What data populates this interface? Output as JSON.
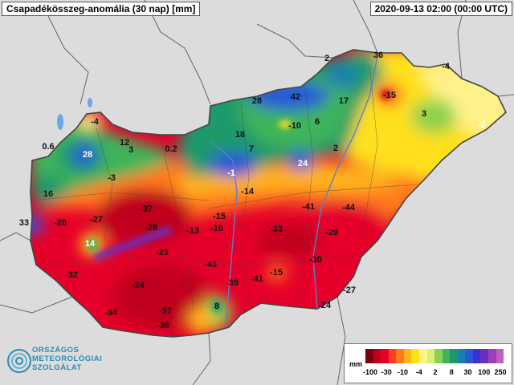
{
  "header": {
    "title": "Csapadékösszeg-anomália (30 nap) [mm]",
    "timestamp": "2020-09-13 02:00 (00:00 UTC)"
  },
  "logo": {
    "lines": [
      "ORSZÁGOS",
      "METEOROLÓGIAI",
      "SZOLGÁLAT"
    ]
  },
  "legend": {
    "unit": "mm",
    "colors": [
      "#7a0010",
      "#c0001a",
      "#e5002a",
      "#ff3d1a",
      "#ff7a1a",
      "#ffb31a",
      "#ffe01a",
      "#fff28a",
      "#d8f07a",
      "#8fd14f",
      "#3fb45a",
      "#1a9a6a",
      "#1a7fb0",
      "#2a56d8",
      "#3a2fd0",
      "#6a2fc0",
      "#9a3fb8",
      "#c05fc0"
    ],
    "labels": [
      "-100",
      "-30",
      "-10",
      "-4",
      "2",
      "8",
      "30",
      "100",
      "250"
    ]
  },
  "values": [
    {
      "v": "36",
      "tone": "dark"
    },
    {
      "v": "-4",
      "tone": "dark"
    },
    {
      "v": "2",
      "tone": "dark"
    },
    {
      "v": "-15",
      "tone": "dark"
    },
    {
      "v": "28",
      "tone": "dark"
    },
    {
      "v": "42",
      "tone": "dark"
    },
    {
      "v": "17",
      "tone": "dark"
    },
    {
      "v": "3",
      "tone": "dark"
    },
    {
      "v": "-2",
      "tone": "light"
    },
    {
      "v": "-4",
      "tone": "dark"
    },
    {
      "v": "6",
      "tone": "dark"
    },
    {
      "v": "-10",
      "tone": "dark"
    },
    {
      "v": "18",
      "tone": "dark"
    },
    {
      "v": "12",
      "tone": "dark"
    },
    {
      "v": "3",
      "tone": "dark"
    },
    {
      "v": "0.6",
      "tone": "dark"
    },
    {
      "v": "28",
      "tone": "light"
    },
    {
      "v": "0.2",
      "tone": "dark"
    },
    {
      "v": "7",
      "tone": "dark"
    },
    {
      "v": "2",
      "tone": "dark"
    },
    {
      "v": "24",
      "tone": "light"
    },
    {
      "v": "-1",
      "tone": "light"
    },
    {
      "v": "-3",
      "tone": "dark"
    },
    {
      "v": "16",
      "tone": "dark"
    },
    {
      "v": "-14",
      "tone": "dark"
    },
    {
      "v": "-37",
      "tone": "dark"
    },
    {
      "v": "-41",
      "tone": "dark"
    },
    {
      "v": "-44",
      "tone": "dark"
    },
    {
      "v": "33",
      "tone": "dark"
    },
    {
      "v": "-20",
      "tone": "dark"
    },
    {
      "v": "-27",
      "tone": "dark"
    },
    {
      "v": "-15",
      "tone": "dark"
    },
    {
      "v": "-28",
      "tone": "dark"
    },
    {
      "v": "-13",
      "tone": "dark"
    },
    {
      "v": "-10",
      "tone": "dark"
    },
    {
      "v": "-33",
      "tone": "dark"
    },
    {
      "v": "-29",
      "tone": "dark"
    },
    {
      "v": "14",
      "tone": "light"
    },
    {
      "v": "-23",
      "tone": "dark"
    },
    {
      "v": "-30",
      "tone": "dark"
    },
    {
      "v": "-32",
      "tone": "dark"
    },
    {
      "v": "-43",
      "tone": "dark"
    },
    {
      "v": "-15",
      "tone": "dark"
    },
    {
      "v": "-24",
      "tone": "dark"
    },
    {
      "v": "-39",
      "tone": "dark"
    },
    {
      "v": "-41",
      "tone": "dark"
    },
    {
      "v": "-27",
      "tone": "dark"
    },
    {
      "v": "-34",
      "tone": "dark"
    },
    {
      "v": "-57",
      "tone": "dark"
    },
    {
      "v": "8",
      "tone": "dark"
    },
    {
      "v": "-24",
      "tone": "dark"
    },
    {
      "v": "-36",
      "tone": "dark"
    }
  ]
}
